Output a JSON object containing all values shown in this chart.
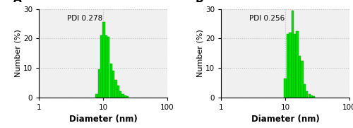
{
  "panel_A": {
    "label": "A",
    "pdi_text": "PDI 0.278",
    "bar_color": "#00DD00",
    "bar_edge_color": "#009900",
    "diameters": [
      8.0,
      8.7,
      9.5,
      10.3,
      11.2,
      12.2,
      13.3,
      14.5,
      15.8,
      17.2,
      18.7,
      20.4,
      22.2,
      24.2
    ],
    "heights": [
      1.0,
      9.5,
      21.0,
      25.5,
      21.0,
      20.5,
      11.5,
      9.0,
      6.0,
      4.0,
      2.0,
      1.0,
      0.5,
      0.3
    ]
  },
  "panel_B": {
    "label": "B",
    "pdi_text": "PDI 0.256",
    "bar_color": "#00DD00",
    "bar_edge_color": "#009900",
    "diameters": [
      10.0,
      10.9,
      11.9,
      13.0,
      14.1,
      15.4,
      16.8,
      18.3,
      19.9,
      21.7,
      23.7,
      25.8,
      28.1
    ],
    "heights": [
      6.5,
      21.5,
      22.0,
      29.5,
      21.5,
      22.5,
      14.0,
      12.5,
      4.5,
      2.0,
      1.0,
      0.5,
      0.3
    ]
  },
  "ylim": [
    0,
    30
  ],
  "yticks": [
    0,
    10,
    20,
    30
  ],
  "xlabel": "Diameter (nm)",
  "ylabel": "Number (%)",
  "bg_color": "#F0F0F0",
  "grid_color": "#BBBBBB",
  "grid_style": ":",
  "grid_alpha": 1.0,
  "grid_linewidth": 0.8
}
